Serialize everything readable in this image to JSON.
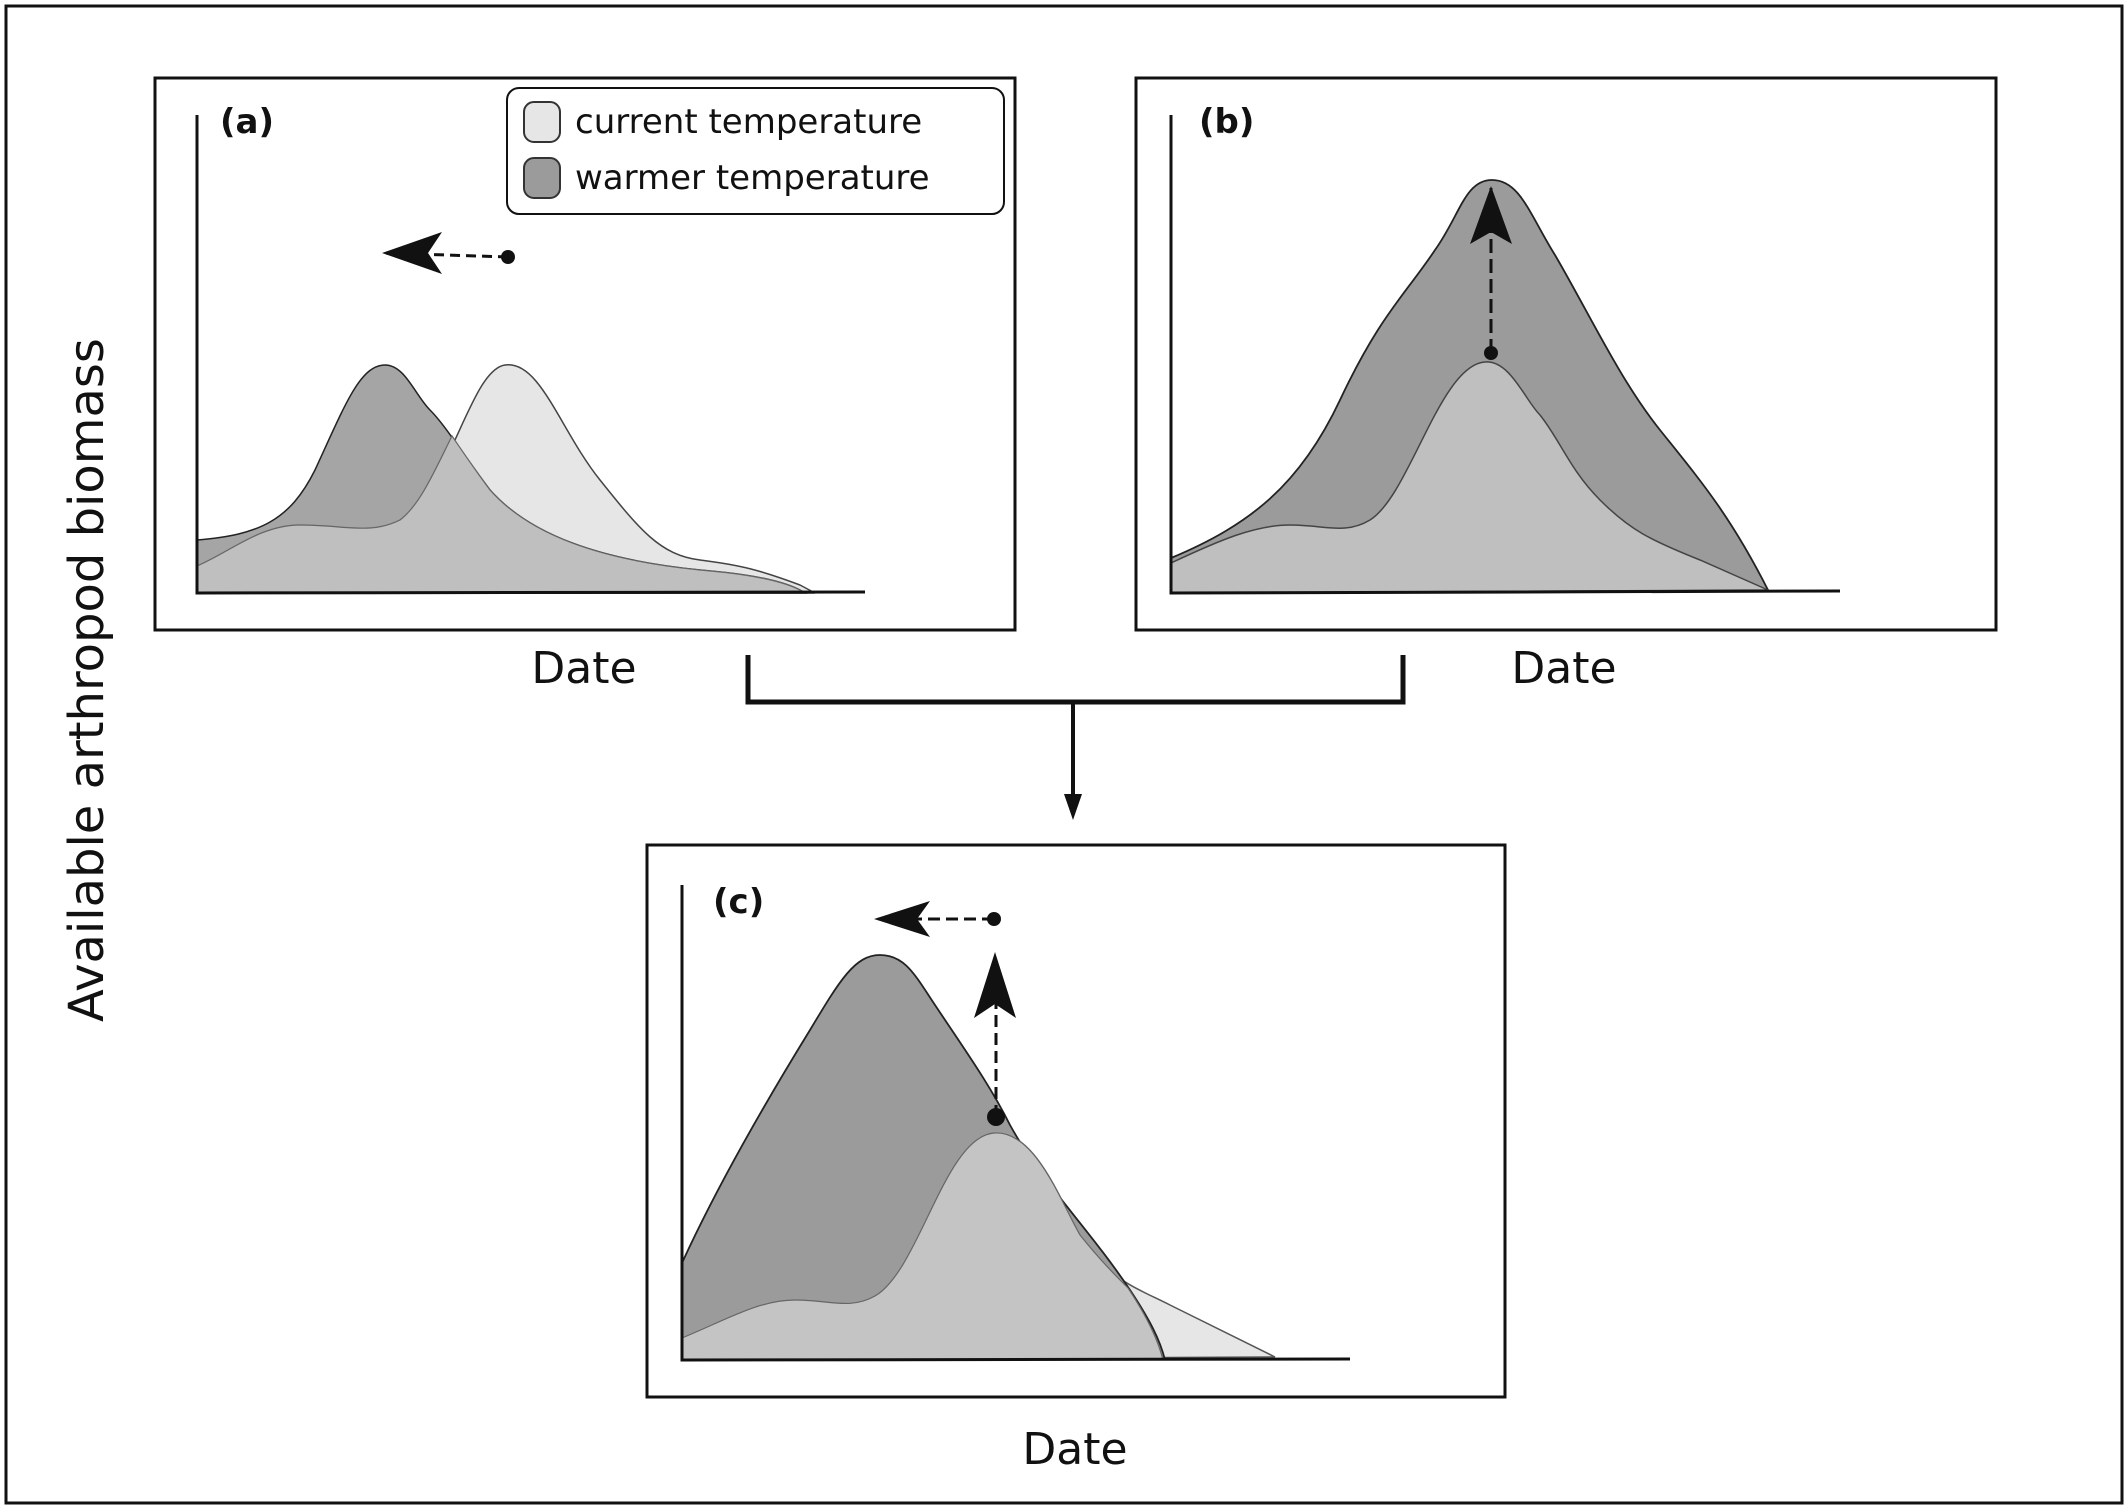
{
  "figure": {
    "ylabel": "Available arthropod biomass",
    "colors": {
      "current_fill": "#e6e6e6",
      "warmer_fill": "#9b9b9b",
      "overlap_fill": "#bfbfbf",
      "stroke": "#111111"
    }
  },
  "legend": {
    "items": [
      {
        "label": "current temperature",
        "swatch": "light-gray"
      },
      {
        "label": "warmer temperature",
        "swatch": "dark-gray"
      }
    ]
  },
  "panels": [
    {
      "id": "a",
      "label": "(a)",
      "xlabel": "Date",
      "arrow": "left"
    },
    {
      "id": "b",
      "label": "(b)",
      "xlabel": "Date",
      "arrow": "up"
    },
    {
      "id": "c",
      "label": "(c)",
      "xlabel": "Date",
      "arrow": "left-and-up"
    }
  ],
  "connector": {
    "from": [
      "a",
      "b"
    ],
    "to": "c"
  }
}
